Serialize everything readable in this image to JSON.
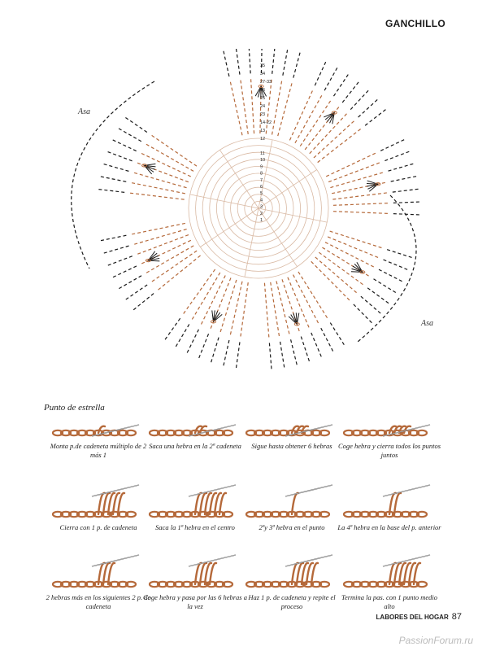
{
  "header": {
    "section": "GANCHILLO"
  },
  "diagram": {
    "label_left": "Asa",
    "label_right": "Asa",
    "row_numbers": [
      "35",
      "34",
      "27-33",
      "26",
      "25",
      "24",
      "23",
      "14-22",
      "13",
      "12",
      "11",
      "10",
      "9",
      "8",
      "7",
      "6",
      "5",
      "4",
      "3",
      "2",
      "1"
    ]
  },
  "stitch_section": {
    "title": "Punto de estrella",
    "steps": [
      "Monta p.de cadeneta múltiplo de 2 más 1",
      "Saca una hebra en la 2ª cadeneta",
      "Sigue hasta obtener 6 hebras",
      "Coge hebra y cierra todos los puntos juntos",
      "Cierra con 1 p. de cadeneta",
      "Saca la 1ª hebra en el centro",
      "2ªy 3ª hebra en el punto",
      "La 4ª hebra en la base del p. anterior",
      "2 hebras más en los siguientes 2 p. de cadeneta",
      "Coge hebra y pasa por las 6 hebras a la vez",
      "Haz 1 p. de cadeneta y repite el proceso",
      "Termina la pas. con 1 punto medio alto"
    ]
  },
  "footer": {
    "magazine": "LABORES DEL HOGAR",
    "page": "87",
    "watermark": "PassionForum.ru"
  },
  "colors": {
    "yarn": "#b5693a",
    "ink": "#1a1a1a"
  }
}
